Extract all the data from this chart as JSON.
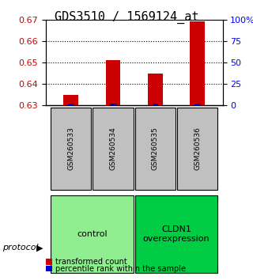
{
  "title": "GDS3510 / 1569124_at",
  "samples": [
    "GSM260533",
    "GSM260534",
    "GSM260535",
    "GSM260536"
  ],
  "transformed_counts": [
    0.635,
    0.651,
    0.645,
    0.669
  ],
  "percentile_ranks": [
    0.002,
    0.002,
    0.002,
    0.002
  ],
  "ylim_left": [
    0.63,
    0.67
  ],
  "ylim_right": [
    0,
    100
  ],
  "yticks_left": [
    0.63,
    0.64,
    0.65,
    0.66,
    0.67
  ],
  "yticks_right": [
    0,
    25,
    50,
    75,
    100
  ],
  "ytick_labels_right": [
    "0",
    "25",
    "50",
    "75",
    "100%"
  ],
  "bar_bottom": 0.63,
  "red_color": "#cc0000",
  "blue_color": "#0000cc",
  "bar_width": 0.35,
  "groups": [
    {
      "label": "control",
      "samples": [
        0,
        1
      ],
      "color": "#90ee90"
    },
    {
      "label": "CLDN1\noverexpression",
      "samples": [
        2,
        3
      ],
      "color": "#00cc44"
    }
  ],
  "sample_box_color": "#c0c0c0",
  "protocol_label": "protocol",
  "legend_red": "transformed count",
  "legend_blue": "percentile rank within the sample",
  "title_fontsize": 11,
  "tick_fontsize": 8,
  "label_fontsize": 8,
  "group_label_fontsize": 8,
  "percentile_bar_height": 0.002
}
